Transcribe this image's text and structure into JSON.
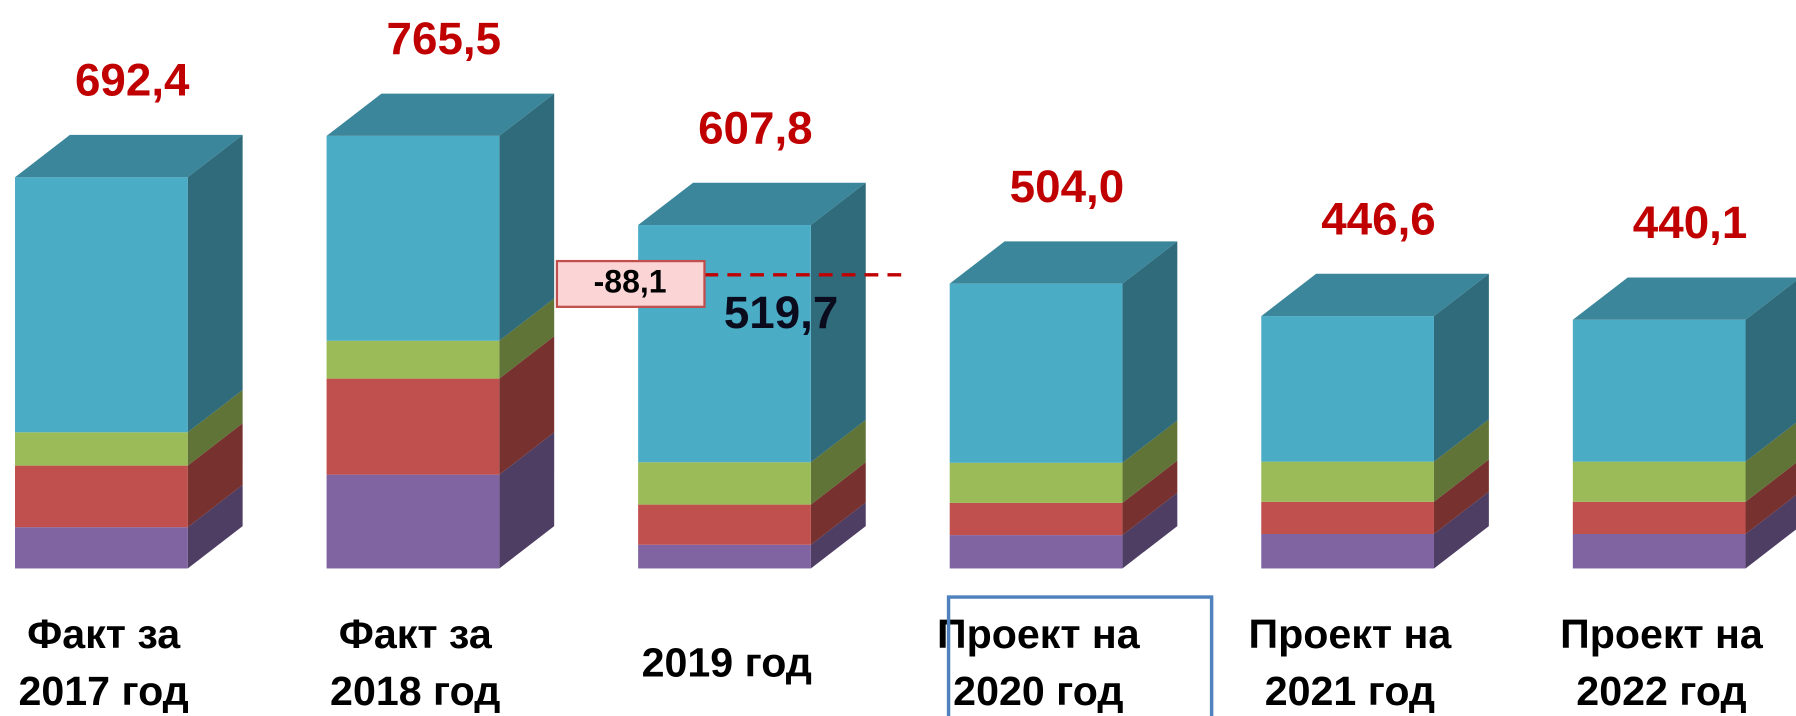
{
  "chart_data": {
    "type": "bar3d_stacked",
    "categories": [
      [
        "Факт за",
        "2017 год"
      ],
      [
        "Факт за",
        "2018 год"
      ],
      [
        "2019 год"
      ],
      [
        "Проект на",
        "2020 год"
      ],
      [
        "Проект на",
        "2021 год"
      ],
      [
        "Проект на",
        "2022 год"
      ]
    ],
    "series": [
      {
        "color": "#8064a2",
        "values": [
          73,
          166,
          42,
          59,
          61,
          61
        ]
      },
      {
        "color": "#c0504d",
        "values": [
          109,
          170,
          71,
          57,
          57,
          57
        ]
      },
      {
        "color": "#9bbb59",
        "values": [
          59,
          67,
          75,
          71,
          71,
          71
        ]
      },
      {
        "color": "#4bacc6",
        "values": [
          451.4,
          362.5,
          419.8,
          317,
          257.6,
          251.1
        ]
      }
    ],
    "totals": [
      692.4,
      765.5,
      607.8,
      504.0,
      446.6,
      440.1
    ],
    "total_labels": [
      "692,4",
      "765,5",
      "607,8",
      "504,0",
      "446,6",
      "440,1"
    ],
    "total_label_color": "#c00000",
    "ylim": [
      0,
      1000
    ],
    "boxed_category": 3,
    "annotation": {
      "category": 2,
      "reference": 519.7,
      "reference_label": "519,7",
      "difference": -88.1,
      "difference_label": "-88,1"
    }
  }
}
